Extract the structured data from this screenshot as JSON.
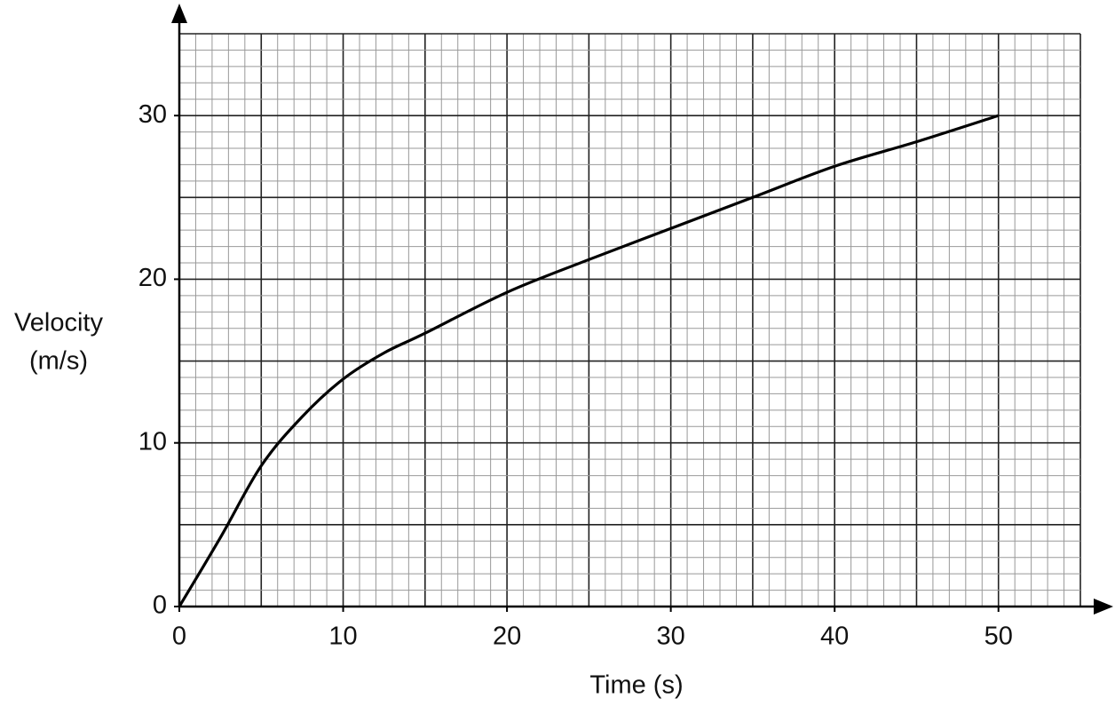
{
  "chart_data": {
    "type": "line",
    "x_label": "Time (s)",
    "y_label": [
      "Velocity",
      "(m/s)"
    ],
    "x": [
      0,
      2.5,
      5,
      7.5,
      10,
      12.5,
      15,
      20,
      25,
      30,
      35,
      40,
      45,
      50
    ],
    "series": [
      {
        "color": "#000000",
        "values": [
          0,
          4.2,
          8.6,
          11.6,
          13.9,
          15.5,
          16.7,
          19.2,
          21.2,
          23.1,
          25.0,
          26.9,
          28.4,
          30
        ]
      }
    ],
    "xlim": [
      0,
      55
    ],
    "ylim": [
      0,
      35
    ],
    "xticks": [
      0,
      10,
      20,
      30,
      40,
      50
    ],
    "yticks": [
      0,
      10,
      20,
      30
    ],
    "grid": true
  }
}
